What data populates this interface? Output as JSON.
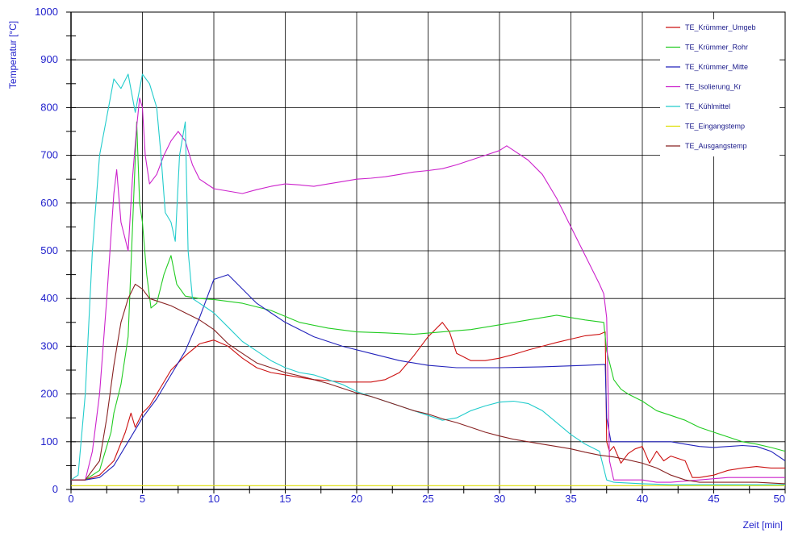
{
  "chart_data": {
    "type": "line",
    "title": "",
    "xlabel": "Zeit [min]",
    "ylabel": "Temperatur [°C]",
    "xlim": [
      0,
      50
    ],
    "ylim": [
      0,
      1000
    ],
    "x_ticks": [
      0,
      5,
      10,
      15,
      20,
      25,
      30,
      35,
      40,
      45,
      50
    ],
    "y_ticks": [
      0,
      100,
      200,
      300,
      400,
      500,
      600,
      700,
      800,
      900,
      1000
    ],
    "grid": true,
    "legend_position": "top-right",
    "series": [
      {
        "name": "TE_Krümmer_Umgeb",
        "color": "#cc1111",
        "points": [
          [
            0,
            20
          ],
          [
            1,
            20
          ],
          [
            2,
            30
          ],
          [
            3,
            60
          ],
          [
            3.8,
            120
          ],
          [
            4.2,
            160
          ],
          [
            4.5,
            130
          ],
          [
            5,
            160
          ],
          [
            5.5,
            175
          ],
          [
            6,
            200
          ],
          [
            7,
            250
          ],
          [
            8,
            280
          ],
          [
            9,
            305
          ],
          [
            10,
            313
          ],
          [
            11,
            300
          ],
          [
            12,
            275
          ],
          [
            13,
            255
          ],
          [
            14,
            245
          ],
          [
            15,
            240
          ],
          [
            16,
            235
          ],
          [
            17,
            230
          ],
          [
            18,
            228
          ],
          [
            19,
            225
          ],
          [
            20,
            225
          ],
          [
            21,
            225
          ],
          [
            22,
            230
          ],
          [
            23,
            245
          ],
          [
            24,
            280
          ],
          [
            25,
            320
          ],
          [
            26,
            350
          ],
          [
            26.5,
            330
          ],
          [
            27,
            285
          ],
          [
            28,
            270
          ],
          [
            29,
            270
          ],
          [
            30,
            275
          ],
          [
            31,
            283
          ],
          [
            32,
            292
          ],
          [
            33,
            300
          ],
          [
            34,
            308
          ],
          [
            35,
            315
          ],
          [
            36,
            322
          ],
          [
            37,
            325
          ],
          [
            37.4,
            330
          ],
          [
            37.5,
            100
          ],
          [
            37.7,
            80
          ],
          [
            38,
            90
          ],
          [
            38.5,
            55
          ],
          [
            39,
            75
          ],
          [
            39.5,
            85
          ],
          [
            40,
            90
          ],
          [
            40.5,
            55
          ],
          [
            41,
            80
          ],
          [
            41.5,
            60
          ],
          [
            42,
            70
          ],
          [
            43,
            60
          ],
          [
            43.5,
            25
          ],
          [
            44,
            25
          ],
          [
            45,
            30
          ],
          [
            46,
            40
          ],
          [
            47,
            45
          ],
          [
            48,
            48
          ],
          [
            49,
            45
          ],
          [
            50,
            45
          ]
        ]
      },
      {
        "name": "TE_Krümmer_Rohr",
        "color": "#22cc22",
        "points": [
          [
            0,
            20
          ],
          [
            1,
            20
          ],
          [
            2,
            40
          ],
          [
            2.8,
            120
          ],
          [
            3,
            160
          ],
          [
            3.5,
            220
          ],
          [
            4,
            320
          ],
          [
            4.4,
            620
          ],
          [
            4.6,
            770
          ],
          [
            4.8,
            600
          ],
          [
            5,
            560
          ],
          [
            5.3,
            450
          ],
          [
            5.6,
            380
          ],
          [
            6,
            390
          ],
          [
            6.5,
            450
          ],
          [
            7,
            490
          ],
          [
            7.4,
            430
          ],
          [
            8,
            405
          ],
          [
            9,
            400
          ],
          [
            10,
            398
          ],
          [
            12,
            390
          ],
          [
            14,
            375
          ],
          [
            16,
            350
          ],
          [
            18,
            338
          ],
          [
            20,
            330
          ],
          [
            22,
            328
          ],
          [
            24,
            325
          ],
          [
            26,
            330
          ],
          [
            28,
            335
          ],
          [
            30,
            345
          ],
          [
            32,
            355
          ],
          [
            34,
            365
          ],
          [
            36,
            355
          ],
          [
            37.3,
            350
          ],
          [
            37.5,
            290
          ],
          [
            38,
            230
          ],
          [
            38.5,
            210
          ],
          [
            39,
            200
          ],
          [
            40,
            185
          ],
          [
            41,
            165
          ],
          [
            42,
            155
          ],
          [
            43,
            145
          ],
          [
            44,
            130
          ],
          [
            45,
            120
          ],
          [
            46,
            110
          ],
          [
            47,
            100
          ],
          [
            48,
            95
          ],
          [
            49,
            88
          ],
          [
            50,
            80
          ]
        ]
      },
      {
        "name": "TE_Krümmer_Mitte",
        "color": "#2222bb",
        "points": [
          [
            0,
            20
          ],
          [
            1,
            20
          ],
          [
            2,
            25
          ],
          [
            3,
            50
          ],
          [
            4,
            100
          ],
          [
            5,
            150
          ],
          [
            6,
            190
          ],
          [
            7,
            240
          ],
          [
            8,
            290
          ],
          [
            9,
            360
          ],
          [
            10,
            440
          ],
          [
            11,
            450
          ],
          [
            12,
            420
          ],
          [
            13,
            390
          ],
          [
            14,
            370
          ],
          [
            15,
            350
          ],
          [
            17,
            320
          ],
          [
            19,
            300
          ],
          [
            21,
            285
          ],
          [
            23,
            270
          ],
          [
            25,
            260
          ],
          [
            27,
            255
          ],
          [
            30,
            255
          ],
          [
            33,
            257
          ],
          [
            36,
            260
          ],
          [
            37.4,
            262
          ],
          [
            37.5,
            150
          ],
          [
            37.8,
            100
          ],
          [
            40,
            100
          ],
          [
            42,
            100
          ],
          [
            43,
            95
          ],
          [
            44,
            90
          ],
          [
            45,
            88
          ],
          [
            46,
            90
          ],
          [
            47,
            92
          ],
          [
            48,
            90
          ],
          [
            49,
            80
          ],
          [
            50,
            60
          ]
        ]
      },
      {
        "name": "TE_Isolierung_Kr",
        "color": "#cc22cc",
        "points": [
          [
            0,
            20
          ],
          [
            1,
            20
          ],
          [
            1.5,
            80
          ],
          [
            2,
            200
          ],
          [
            2.5,
            400
          ],
          [
            3,
            620
          ],
          [
            3.2,
            670
          ],
          [
            3.5,
            560
          ],
          [
            4,
            500
          ],
          [
            4.3,
            650
          ],
          [
            4.6,
            760
          ],
          [
            4.8,
            820
          ],
          [
            5,
            800
          ],
          [
            5.2,
            700
          ],
          [
            5.5,
            640
          ],
          [
            6,
            660
          ],
          [
            6.5,
            700
          ],
          [
            7,
            730
          ],
          [
            7.5,
            750
          ],
          [
            8,
            730
          ],
          [
            8.5,
            680
          ],
          [
            9,
            650
          ],
          [
            10,
            630
          ],
          [
            11,
            625
          ],
          [
            12,
            620
          ],
          [
            13,
            628
          ],
          [
            14,
            635
          ],
          [
            15,
            640
          ],
          [
            16,
            638
          ],
          [
            17,
            635
          ],
          [
            18,
            640
          ],
          [
            19,
            645
          ],
          [
            20,
            650
          ],
          [
            21,
            652
          ],
          [
            22,
            655
          ],
          [
            23,
            660
          ],
          [
            24,
            665
          ],
          [
            25,
            668
          ],
          [
            26,
            672
          ],
          [
            27,
            680
          ],
          [
            28,
            690
          ],
          [
            29,
            700
          ],
          [
            30,
            710
          ],
          [
            30.5,
            720
          ],
          [
            31,
            710
          ],
          [
            32,
            690
          ],
          [
            33,
            660
          ],
          [
            34,
            610
          ],
          [
            35,
            550
          ],
          [
            36,
            490
          ],
          [
            37,
            430
          ],
          [
            37.3,
            410
          ],
          [
            37.5,
            360
          ],
          [
            37.7,
            60
          ],
          [
            38,
            20
          ],
          [
            39,
            20
          ],
          [
            40,
            20
          ],
          [
            41,
            15
          ],
          [
            42,
            15
          ],
          [
            44,
            20
          ],
          [
            46,
            25
          ],
          [
            48,
            25
          ],
          [
            50,
            25
          ]
        ]
      },
      {
        "name": "TE_Kühlmittel",
        "color": "#22cccc",
        "points": [
          [
            0,
            20
          ],
          [
            0.5,
            30
          ],
          [
            1,
            200
          ],
          [
            1.5,
            500
          ],
          [
            2,
            700
          ],
          [
            2.5,
            780
          ],
          [
            3,
            860
          ],
          [
            3.5,
            840
          ],
          [
            4,
            870
          ],
          [
            4.5,
            790
          ],
          [
            5,
            870
          ],
          [
            5.5,
            850
          ],
          [
            6,
            800
          ],
          [
            6.3,
            700
          ],
          [
            6.6,
            580
          ],
          [
            7,
            560
          ],
          [
            7.3,
            520
          ],
          [
            7.6,
            700
          ],
          [
            8,
            770
          ],
          [
            8.2,
            500
          ],
          [
            8.5,
            400
          ],
          [
            9,
            390
          ],
          [
            10,
            370
          ],
          [
            11,
            340
          ],
          [
            12,
            310
          ],
          [
            13,
            290
          ],
          [
            14,
            270
          ],
          [
            15,
            255
          ],
          [
            16,
            245
          ],
          [
            17,
            240
          ],
          [
            18,
            230
          ],
          [
            19,
            220
          ],
          [
            20,
            205
          ],
          [
            21,
            195
          ],
          [
            22,
            185
          ],
          [
            23,
            175
          ],
          [
            24,
            165
          ],
          [
            25,
            155
          ],
          [
            26,
            145
          ],
          [
            27,
            150
          ],
          [
            28,
            165
          ],
          [
            29,
            175
          ],
          [
            30,
            183
          ],
          [
            31,
            185
          ],
          [
            32,
            180
          ],
          [
            33,
            165
          ],
          [
            34,
            140
          ],
          [
            35,
            115
          ],
          [
            36,
            95
          ],
          [
            37,
            80
          ],
          [
            37.5,
            20
          ],
          [
            38,
            15
          ],
          [
            40,
            12
          ],
          [
            42,
            10
          ],
          [
            44,
            10
          ],
          [
            46,
            10
          ],
          [
            48,
            10
          ],
          [
            50,
            10
          ]
        ]
      },
      {
        "name": "TE_Eingangstemp",
        "color": "#dddd00",
        "points": [
          [
            0,
            8
          ],
          [
            10,
            8
          ],
          [
            20,
            8
          ],
          [
            30,
            8
          ],
          [
            40,
            8
          ],
          [
            50,
            8
          ]
        ]
      },
      {
        "name": "TE_Ausgangstemp",
        "color": "#882222",
        "points": [
          [
            0,
            20
          ],
          [
            1,
            20
          ],
          [
            2,
            60
          ],
          [
            2.5,
            150
          ],
          [
            3,
            260
          ],
          [
            3.5,
            350
          ],
          [
            4,
            400
          ],
          [
            4.5,
            430
          ],
          [
            5,
            420
          ],
          [
            5.5,
            400
          ],
          [
            6,
            395
          ],
          [
            7,
            385
          ],
          [
            8,
            370
          ],
          [
            9,
            355
          ],
          [
            10,
            335
          ],
          [
            11,
            305
          ],
          [
            12,
            285
          ],
          [
            13,
            265
          ],
          [
            14,
            255
          ],
          [
            15,
            245
          ],
          [
            16,
            238
          ],
          [
            17,
            230
          ],
          [
            18,
            222
          ],
          [
            19,
            212
          ],
          [
            20,
            202
          ],
          [
            21,
            195
          ],
          [
            22,
            185
          ],
          [
            23,
            175
          ],
          [
            24,
            165
          ],
          [
            25,
            158
          ],
          [
            26,
            148
          ],
          [
            27,
            140
          ],
          [
            28,
            130
          ],
          [
            29,
            120
          ],
          [
            30,
            112
          ],
          [
            31,
            105
          ],
          [
            32,
            100
          ],
          [
            33,
            95
          ],
          [
            34,
            90
          ],
          [
            35,
            85
          ],
          [
            36,
            78
          ],
          [
            37,
            72
          ],
          [
            38,
            68
          ],
          [
            39,
            62
          ],
          [
            40,
            55
          ],
          [
            41,
            45
          ],
          [
            42,
            30
          ],
          [
            43,
            20
          ],
          [
            44,
            15
          ],
          [
            46,
            15
          ],
          [
            48,
            15
          ],
          [
            50,
            12
          ]
        ]
      }
    ]
  }
}
